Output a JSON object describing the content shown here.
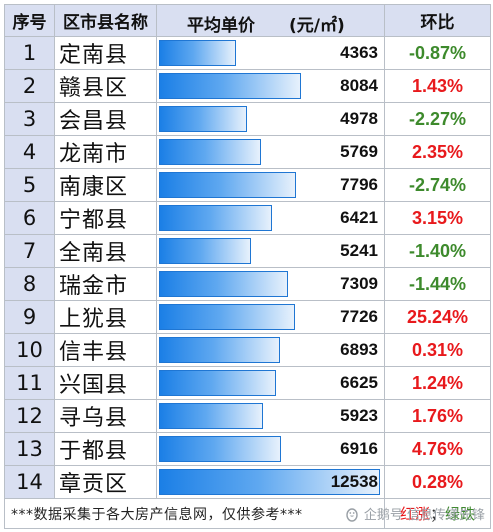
{
  "header": {
    "idx": "序号",
    "name": "区市县名称",
    "avg": "平均单价",
    "unit": "(元/㎡)",
    "change": "环比"
  },
  "colors": {
    "bar": "#1b7fe6",
    "up": "#e8191c",
    "down": "#3d8a2c",
    "header_bg": "#d9dff1"
  },
  "chart_data": {
    "type": "table",
    "bar_max": 12538,
    "columns": [
      "序号",
      "区市县名称",
      "平均单价 (元/㎡)",
      "环比"
    ],
    "rows": [
      {
        "idx": "1",
        "name": "定南县",
        "price": 4363,
        "change": "-0.87%",
        "dir": "down"
      },
      {
        "idx": "2",
        "name": "赣县区",
        "price": 8084,
        "change": "1.43%",
        "dir": "up"
      },
      {
        "idx": "3",
        "name": "会昌县",
        "price": 4978,
        "change": "-2.27%",
        "dir": "down"
      },
      {
        "idx": "4",
        "name": "龙南市",
        "price": 5769,
        "change": "2.35%",
        "dir": "up"
      },
      {
        "idx": "5",
        "name": "南康区",
        "price": 7796,
        "change": "-2.74%",
        "dir": "down"
      },
      {
        "idx": "6",
        "name": "宁都县",
        "price": 6421,
        "change": "3.15%",
        "dir": "up"
      },
      {
        "idx": "7",
        "name": "全南县",
        "price": 5241,
        "change": "-1.40%",
        "dir": "down"
      },
      {
        "idx": "8",
        "name": "瑞金市",
        "price": 7309,
        "change": "-1.44%",
        "dir": "down"
      },
      {
        "idx": "9",
        "name": "上犹县",
        "price": 7726,
        "change": "25.24%",
        "dir": "up"
      },
      {
        "idx": "10",
        "name": "信丰县",
        "price": 6893,
        "change": "0.31%",
        "dir": "up"
      },
      {
        "idx": "11",
        "name": "兴国县",
        "price": 6625,
        "change": "1.24%",
        "dir": "up"
      },
      {
        "idx": "12",
        "name": "寻乌县",
        "price": 5923,
        "change": "1.76%",
        "dir": "up"
      },
      {
        "idx": "13",
        "name": "于都县",
        "price": 6916,
        "change": "4.76%",
        "dir": "up"
      },
      {
        "idx": "14",
        "name": "章贡区",
        "price": 12538,
        "change": "0.28%",
        "dir": "up"
      }
    ]
  },
  "footer": {
    "note": "***数据采集于各大房产信息网，仅供参考***",
    "legend_up": "红涨",
    "legend_sep": "；",
    "legend_down": "绿跌"
  },
  "watermark": {
    "icon": "penguin-icon",
    "text": "企鹅号 信息传递先锋"
  }
}
